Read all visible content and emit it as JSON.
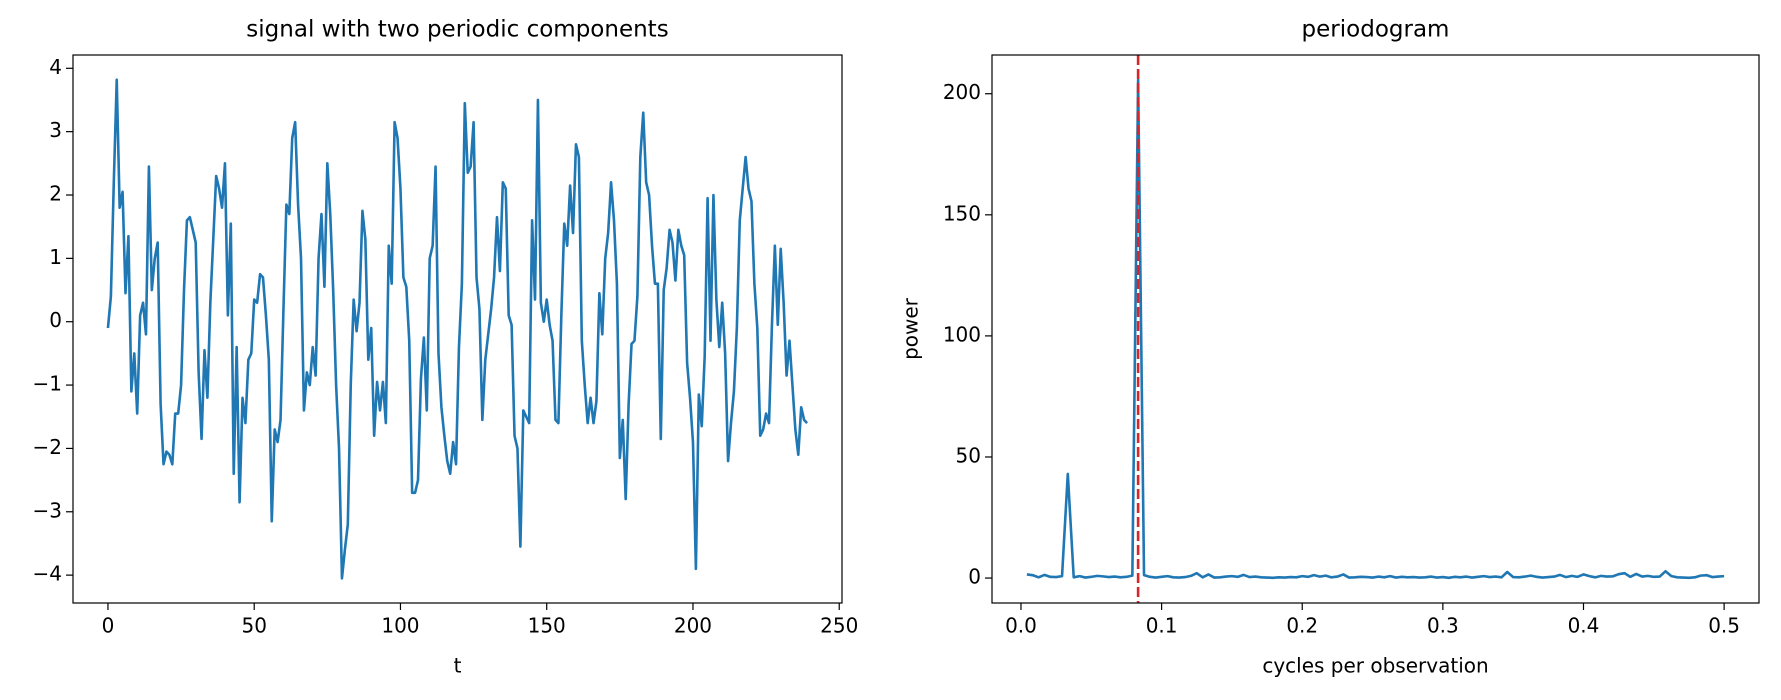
{
  "chart_data": [
    {
      "type": "line",
      "title": "signal with two periodic components",
      "xlabel": "t",
      "x": [
        0,
        1,
        2,
        3,
        4,
        5,
        6,
        7,
        8,
        9,
        10,
        11,
        12,
        13,
        14,
        15,
        16,
        17,
        18,
        19,
        20,
        21,
        22,
        23,
        24,
        25,
        26,
        27,
        28,
        29,
        30,
        31,
        32,
        33,
        34,
        35,
        36,
        37,
        38,
        39,
        40,
        41,
        42,
        43,
        44,
        45,
        46,
        47,
        48,
        49,
        50,
        51,
        52,
        53,
        54,
        55,
        56,
        57,
        58,
        59,
        60,
        61,
        62,
        63,
        64,
        65,
        66,
        67,
        68,
        69,
        70,
        71,
        72,
        73,
        74,
        75,
        76,
        77,
        78,
        79,
        80,
        81,
        82,
        83,
        84,
        85,
        86,
        87,
        88,
        89,
        90,
        91,
        92,
        93,
        94,
        95,
        96,
        97,
        98,
        99,
        100,
        101,
        102,
        103,
        104,
        105,
        106,
        107,
        108,
        109,
        110,
        111,
        112,
        113,
        114,
        115,
        116,
        117,
        118,
        119,
        120,
        121,
        122,
        123,
        124,
        125,
        126,
        127,
        128,
        129,
        130,
        131,
        132,
        133,
        134,
        135,
        136,
        137,
        138,
        139,
        140,
        141,
        142,
        143,
        144,
        145,
        146,
        147,
        148,
        149,
        150,
        151,
        152,
        153,
        154,
        155,
        156,
        157,
        158,
        159,
        160,
        161,
        162,
        163,
        164,
        165,
        166,
        167,
        168,
        169,
        170,
        171,
        172,
        173,
        174,
        175,
        176,
        177,
        178,
        179,
        180,
        181,
        182,
        183,
        184,
        185,
        186,
        187,
        188,
        189,
        190,
        191,
        192,
        193,
        194,
        195,
        196,
        197,
        198,
        199,
        200,
        201,
        202,
        203,
        204,
        205,
        206,
        207,
        208,
        209,
        210,
        211,
        212,
        213,
        214,
        215,
        216,
        217,
        218,
        219,
        220,
        221,
        222,
        223,
        224,
        225,
        226,
        227,
        228,
        229,
        230,
        231,
        232,
        233,
        234,
        235,
        236,
        237,
        238,
        239
      ],
      "series": [
        {
          "color": "#1f77b4",
          "values": [
            -0.1,
            0.4,
            2.2,
            3.82,
            1.8,
            2.05,
            0.45,
            1.35,
            -1.1,
            -0.5,
            -1.45,
            0.1,
            0.3,
            -0.2,
            2.45,
            0.5,
            1.0,
            1.25,
            -1.3,
            -2.25,
            -2.05,
            -2.1,
            -2.25,
            -1.45,
            -1.45,
            -1.0,
            0.5,
            1.6,
            1.65,
            1.45,
            1.25,
            -0.8,
            -1.85,
            -0.45,
            -1.2,
            0.3,
            1.3,
            2.3,
            2.1,
            1.8,
            2.5,
            0.1,
            1.55,
            -2.4,
            -0.4,
            -2.85,
            -1.2,
            -1.6,
            -0.6,
            -0.5,
            0.35,
            0.3,
            0.75,
            0.7,
            0.1,
            -0.6,
            -3.15,
            -1.7,
            -1.9,
            -1.55,
            0.2,
            1.85,
            1.7,
            2.9,
            3.15,
            1.85,
            1.0,
            -1.4,
            -0.8,
            -1.0,
            -0.4,
            -0.85,
            1.0,
            1.7,
            0.55,
            2.5,
            1.7,
            0.5,
            -1.0,
            -2.0,
            -4.05,
            -3.6,
            -3.2,
            -1.0,
            0.35,
            -0.15,
            0.3,
            1.75,
            1.3,
            -0.6,
            -0.1,
            -1.8,
            -0.95,
            -1.4,
            -0.95,
            -1.6,
            1.2,
            0.6,
            3.15,
            2.9,
            2.1,
            0.7,
            0.55,
            -0.3,
            -2.7,
            -2.7,
            -2.5,
            -0.9,
            -0.25,
            -1.4,
            1.0,
            1.2,
            2.45,
            -0.5,
            -1.35,
            -1.8,
            -2.2,
            -2.4,
            -1.9,
            -2.25,
            -0.4,
            0.6,
            3.45,
            2.35,
            2.45,
            3.15,
            0.7,
            0.2,
            -1.55,
            -0.6,
            -0.2,
            0.2,
            0.7,
            1.65,
            0.8,
            2.2,
            2.1,
            0.1,
            -0.05,
            -1.8,
            -2.0,
            -3.55,
            -1.4,
            -1.5,
            -1.6,
            1.6,
            0.35,
            3.5,
            0.3,
            0.0,
            0.35,
            -0.05,
            -0.3,
            -1.55,
            -1.6,
            0.1,
            1.55,
            1.2,
            2.15,
            1.4,
            2.8,
            2.6,
            -0.3,
            -1.0,
            -1.6,
            -1.2,
            -1.6,
            -1.25,
            0.45,
            -0.2,
            1.0,
            1.4,
            2.2,
            1.6,
            0.6,
            -2.15,
            -1.55,
            -2.8,
            -1.3,
            -0.35,
            -0.3,
            0.4,
            2.6,
            3.3,
            2.2,
            2.0,
            1.2,
            0.6,
            0.6,
            -1.85,
            0.5,
            0.85,
            1.45,
            1.25,
            0.65,
            1.45,
            1.2,
            1.05,
            -0.65,
            -1.2,
            -1.9,
            -3.9,
            -1.15,
            -1.65,
            -0.55,
            1.95,
            -0.3,
            2.0,
            0.35,
            -0.4,
            0.3,
            -0.5,
            -2.2,
            -1.6,
            -1.1,
            -0.1,
            1.6,
            2.1,
            2.6,
            2.1,
            1.9,
            0.6,
            -0.1,
            -1.8,
            -1.7,
            -1.45,
            -1.6,
            -0.05,
            1.2,
            -0.05,
            1.15,
            0.3,
            -0.85,
            -0.3,
            -1.0,
            -1.7,
            -2.1,
            -1.35,
            -1.55,
            -1.6
          ]
        }
      ],
      "xlim": [
        -11.95,
        250.95
      ],
      "xticks": [
        0,
        50,
        100,
        150,
        200,
        250
      ],
      "ylim": [
        -4.44,
        4.21
      ],
      "yticks": [
        {
          "value": -4,
          "label": "−4"
        },
        {
          "value": -3,
          "label": "−3"
        },
        {
          "value": -2,
          "label": "−2"
        },
        {
          "value": -1,
          "label": "−1"
        },
        0,
        1,
        2,
        3,
        4
      ]
    },
    {
      "type": "line",
      "title": "periodogram",
      "xlabel": "cycles per observation",
      "ylabel": "power",
      "x": [
        0.0042,
        0.0083,
        0.0125,
        0.0167,
        0.0208,
        0.025,
        0.0292,
        0.0333,
        0.0375,
        0.0417,
        0.0458,
        0.05,
        0.0542,
        0.0583,
        0.0625,
        0.0667,
        0.0708,
        0.075,
        0.0792,
        0.0833,
        0.0875,
        0.0917,
        0.0958,
        0.1,
        0.1042,
        0.1083,
        0.1125,
        0.1167,
        0.1208,
        0.125,
        0.1292,
        0.1333,
        0.1375,
        0.1417,
        0.1458,
        0.15,
        0.1542,
        0.1583,
        0.1625,
        0.1667,
        0.1708,
        0.175,
        0.1792,
        0.1833,
        0.1875,
        0.1917,
        0.1958,
        0.2,
        0.2042,
        0.2083,
        0.2125,
        0.2167,
        0.2208,
        0.225,
        0.2292,
        0.2333,
        0.2375,
        0.2417,
        0.2458,
        0.25,
        0.2542,
        0.2583,
        0.2625,
        0.2667,
        0.2708,
        0.275,
        0.2792,
        0.2833,
        0.2875,
        0.2917,
        0.2958,
        0.3,
        0.3042,
        0.3083,
        0.3125,
        0.3167,
        0.3208,
        0.325,
        0.3292,
        0.3333,
        0.3375,
        0.3417,
        0.3458,
        0.35,
        0.3542,
        0.3583,
        0.3625,
        0.3667,
        0.3708,
        0.375,
        0.3792,
        0.3833,
        0.3875,
        0.3917,
        0.3958,
        0.4,
        0.4042,
        0.4083,
        0.4125,
        0.4167,
        0.4208,
        0.425,
        0.4292,
        0.4333,
        0.4375,
        0.4417,
        0.4458,
        0.45,
        0.4542,
        0.4583,
        0.4625,
        0.4667,
        0.4708,
        0.475,
        0.4792,
        0.4833,
        0.4875,
        0.4917,
        0.4958,
        0.5
      ],
      "series": [
        {
          "color": "#1f77b4",
          "values": [
            1.5,
            1.2,
            0.3,
            1.3,
            0.5,
            0.4,
            0.8,
            43,
            0.3,
            0.8,
            0.2,
            0.5,
            0.9,
            0.7,
            0.4,
            0.6,
            0.3,
            0.5,
            1.0,
            205.7,
            1.2,
            0.5,
            0.2,
            0.5,
            0.8,
            0.3,
            0.2,
            0.4,
            0.9,
            2.0,
            0.3,
            1.5,
            0.2,
            0.3,
            0.6,
            0.8,
            0.5,
            1.3,
            0.4,
            0.6,
            0.3,
            0.2,
            0.1,
            0.3,
            0.2,
            0.4,
            0.3,
            0.8,
            0.5,
            1.2,
            0.6,
            1.0,
            0.3,
            0.6,
            1.5,
            0.2,
            0.3,
            0.5,
            0.4,
            0.2,
            0.6,
            0.3,
            0.8,
            0.2,
            0.5,
            0.3,
            0.4,
            0.2,
            0.3,
            0.6,
            0.2,
            0.4,
            0.1,
            0.5,
            0.3,
            0.6,
            0.2,
            0.5,
            0.8,
            0.4,
            0.6,
            0.3,
            2.5,
            0.4,
            0.3,
            0.6,
            1.0,
            0.5,
            0.2,
            0.4,
            0.6,
            1.3,
            0.4,
            0.9,
            0.5,
            1.5,
            0.8,
            0.3,
            0.9,
            0.6,
            0.7,
            1.6,
            2.0,
            0.5,
            1.7,
            0.6,
            0.9,
            0.5,
            0.6,
            2.8,
            0.8,
            0.3,
            0.2,
            0.1,
            0.3,
            1.0,
            1.2,
            0.4,
            0.6,
            0.8
          ]
        }
      ],
      "vlines": [
        {
          "value": 0.0833,
          "color": "#d62728",
          "style": "dashed"
        }
      ],
      "xlim": [
        -0.0206,
        0.5248
      ],
      "xticks": [
        {
          "value": 0,
          "label": "0.0"
        },
        0.1,
        0.2,
        0.3,
        0.4,
        0.5
      ],
      "ylim": [
        -10.3,
        216
      ],
      "yticks": [
        0,
        50,
        100,
        150,
        200
      ]
    }
  ]
}
